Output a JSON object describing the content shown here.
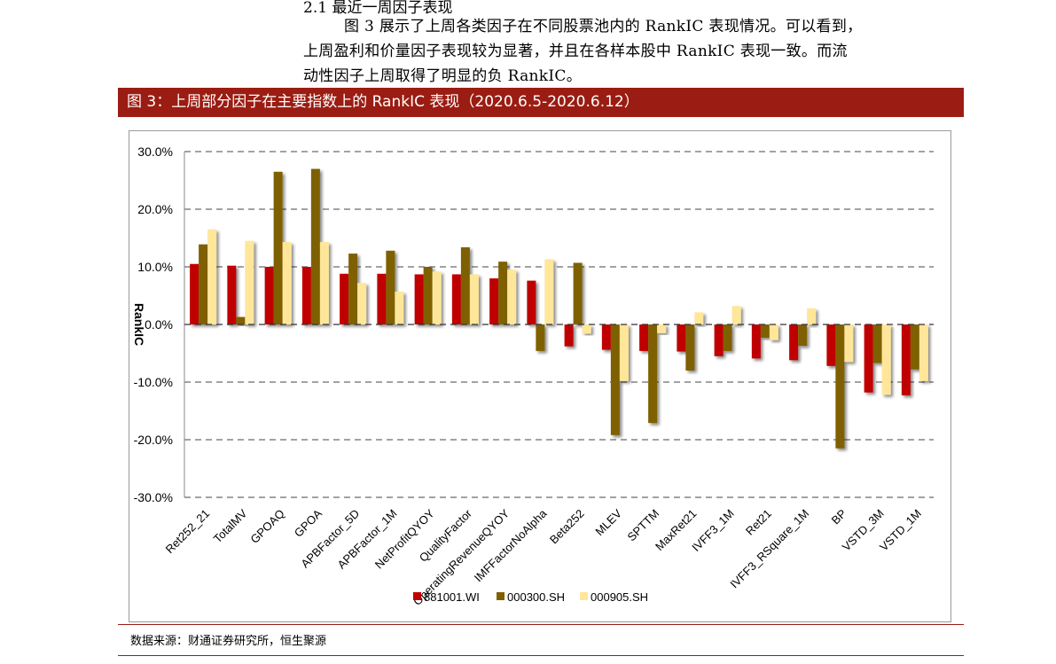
{
  "document": {
    "section_heading": "2.1  最近一周因子表现",
    "paragraph_lines": [
      "图 3 展示了上周各类因子在不同股票池内的 RankIC 表现情况。可以看到，",
      "上周盈利和价量因子表现较为显著，并且在各样本股中 RankIC 表现一致。而流",
      "动性因子上周取得了明显的负 RankIC。"
    ],
    "figure_title": "图 3：上周部分因子在主要指数上的 RankIC 表现（2020.6.5-2020.6.12）",
    "source": "数据来源：财通证券研究所，恒生聚源"
  },
  "chart_data": {
    "type": "bar",
    "title": "",
    "xlabel": "",
    "ylabel": "RankIC",
    "ylim": [
      -0.3,
      0.3
    ],
    "yticks": [
      0.3,
      0.2,
      0.1,
      0.0,
      -0.1,
      -0.2,
      -0.3
    ],
    "ytick_labels": [
      "30.0%",
      "20.0%",
      "10.0%",
      "0.0%",
      "-10.0%",
      "-20.0%",
      "-30.0%"
    ],
    "grid": true,
    "legend_position": "bottom",
    "categories": [
      "Ret252_21",
      "TotalMV",
      "GPOAQ",
      "GPOA",
      "APBFactor_5D",
      "APBFactor_1M",
      "NetProfitQYOY",
      "QualityFactor",
      "OperatingRevenueQYOY",
      "IMFFactorNoAlpha",
      "Beta252",
      "MLEV",
      "SPTTM",
      "MaxRet21",
      "IVFF3_1M",
      "Ret21",
      "IVFF3_RSquare_1M",
      "BP",
      "VSTD_3M",
      "VSTD_1M"
    ],
    "series": [
      {
        "name": "881001.WI",
        "color": "#c00000",
        "values": [
          0.105,
          0.102,
          0.1,
          0.1,
          0.088,
          0.088,
          0.087,
          0.087,
          0.08,
          0.076,
          -0.038,
          -0.044,
          -0.046,
          -0.047,
          -0.055,
          -0.059,
          -0.062,
          -0.072,
          -0.118,
          -0.123
        ]
      },
      {
        "name": "000300.SH",
        "color": "#7f6000",
        "values": [
          0.139,
          0.013,
          0.265,
          0.27,
          0.123,
          0.128,
          0.1,
          0.134,
          0.109,
          -0.046,
          0.107,
          -0.192,
          -0.171,
          -0.08,
          -0.046,
          -0.023,
          -0.037,
          -0.215,
          -0.067,
          -0.078
        ]
      },
      {
        "name": "000905.SH",
        "color": "#ffe699",
        "values": [
          0.165,
          0.145,
          0.143,
          0.143,
          0.072,
          0.057,
          0.092,
          0.087,
          0.095,
          0.113,
          -0.016,
          -0.098,
          -0.015,
          0.021,
          0.032,
          -0.027,
          0.028,
          -0.065,
          -0.122,
          -0.098
        ]
      }
    ]
  }
}
